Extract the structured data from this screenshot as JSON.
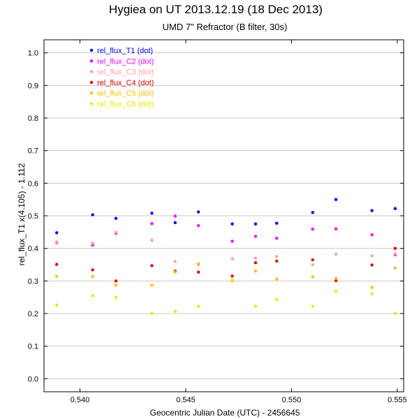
{
  "chart_data": {
    "type": "scatter",
    "title": "Hygiea on UT 2013.12.19 (18 Dec 2013)",
    "subtitle": "UMD 7\" Refractor (B filter, 30s)",
    "xlabel": "Geocentric Julian Date (UTC) - 2456645",
    "ylabel": "rel_flux_T1 x(4.105) - 1.112",
    "xlim": [
      0.5383,
      0.5553
    ],
    "ylim": [
      -0.04,
      1.04
    ],
    "x_ticks": [
      0.54,
      0.545,
      0.55,
      0.555
    ],
    "x_tick_labels": [
      "0.540",
      "0.545",
      "0.550",
      "0.555"
    ],
    "y_ticks": [
      0.0,
      0.1,
      0.2,
      0.3,
      0.4,
      0.5,
      0.6,
      0.7,
      0.8,
      0.9,
      1.0
    ],
    "y_tick_labels": [
      "0.0",
      "0.1",
      "0.2",
      "0.3",
      "0.4",
      "0.5",
      "0.6",
      "0.7",
      "0.8",
      "0.9",
      "1.0"
    ],
    "grid": "horizontal",
    "legend_position": "top-left",
    "x": [
      0.5389,
      0.5406,
      0.5417,
      0.5434,
      0.5445,
      0.5456,
      0.5472,
      0.5483,
      0.5493,
      0.551,
      0.5521,
      0.5538,
      0.5549
    ],
    "series": [
      {
        "name": "rel_flux_T1 (dot)",
        "color": "#0000ff",
        "values": [
          0.448,
          0.503,
          0.492,
          0.508,
          0.479,
          0.512,
          0.475,
          0.475,
          0.477,
          0.51,
          0.55,
          0.516,
          0.522
        ]
      },
      {
        "name": "rel_flux_C2 (dot)",
        "color": "#ff00ff",
        "values": [
          0.418,
          0.41,
          0.446,
          0.476,
          0.499,
          0.47,
          0.422,
          0.437,
          0.431,
          0.459,
          0.46,
          0.442,
          0.38
        ]
      },
      {
        "name": "rel_flux_C3 (dot)",
        "color": "#ffa0a0",
        "values": [
          0.42,
          0.416,
          0.449,
          0.425,
          0.36,
          0.35,
          0.368,
          0.37,
          0.375,
          0.35,
          0.382,
          0.377,
          0.383
        ]
      },
      {
        "name": "rel_flux_C4 (dot)",
        "color": "#e00000",
        "values": [
          0.351,
          0.334,
          0.3,
          0.347,
          0.33,
          0.327,
          0.315,
          0.356,
          0.361,
          0.365,
          0.301,
          0.349,
          0.4
        ]
      },
      {
        "name": "rel_flux_C5 (dot)",
        "color": "#ffc000",
        "values": [
          0.314,
          0.314,
          0.287,
          0.287,
          0.327,
          0.353,
          0.3,
          0.33,
          0.306,
          0.313,
          0.308,
          0.28,
          0.34
        ]
      },
      {
        "name": "rel_flux_C6 (dot)",
        "color": "#e8e800",
        "values": [
          0.226,
          0.255,
          0.25,
          0.2,
          0.207,
          0.222,
          0.303,
          0.222,
          0.243,
          0.222,
          0.268,
          0.261,
          0.2
        ]
      }
    ]
  }
}
